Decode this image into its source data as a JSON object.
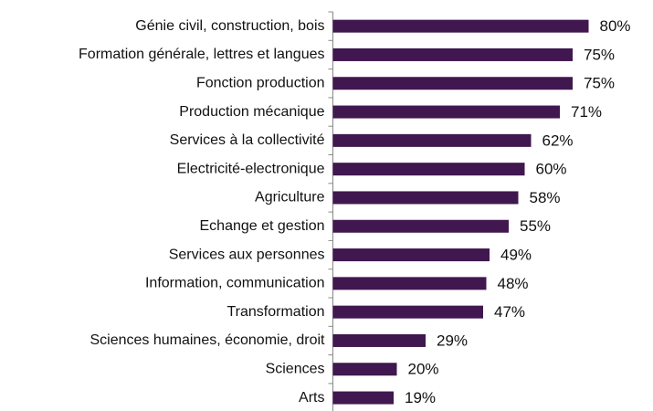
{
  "chart_data": {
    "type": "bar",
    "orientation": "horizontal",
    "color": "#40174f",
    "categories": [
      "Génie civil, construction, bois",
      "Formation générale, lettres et langues",
      "Fonction production",
      "Production mécanique",
      "Services à la collectivité",
      "Electricité-electronique",
      "Agriculture",
      "Echange et gestion",
      "Services aux personnes",
      "Information, communication",
      "Transformation",
      "Sciences humaines, économie, droit",
      "Sciences",
      "Arts"
    ],
    "values": [
      80,
      75,
      75,
      71,
      62,
      60,
      58,
      55,
      49,
      48,
      47,
      29,
      20,
      19
    ],
    "value_labels": [
      "80%",
      "75%",
      "75%",
      "71%",
      "62%",
      "60%",
      "58%",
      "55%",
      "49%",
      "48%",
      "47%",
      "29%",
      "20%",
      "19%"
    ]
  }
}
